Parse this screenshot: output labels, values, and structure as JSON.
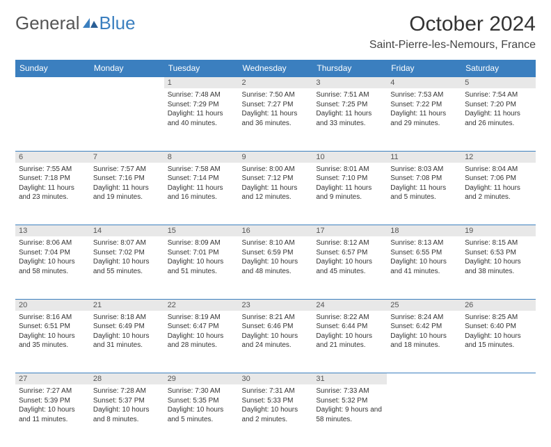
{
  "brand": {
    "part1": "General",
    "part2": "Blue"
  },
  "title": "October 2024",
  "location": "Saint-Pierre-les-Nemours, France",
  "colors": {
    "header_blue": "#3b7fbf",
    "gray_bg": "#e8e8e8",
    "text": "#333333",
    "brand_gray": "#555555"
  },
  "weekdays": [
    "Sunday",
    "Monday",
    "Tuesday",
    "Wednesday",
    "Thursday",
    "Friday",
    "Saturday"
  ],
  "layout": {
    "first_weekday_index": 2,
    "days_in_month": 31
  },
  "days": [
    {
      "n": 1,
      "sunrise": "7:48 AM",
      "sunset": "7:29 PM",
      "daylight": "11 hours and 40 minutes."
    },
    {
      "n": 2,
      "sunrise": "7:50 AM",
      "sunset": "7:27 PM",
      "daylight": "11 hours and 36 minutes."
    },
    {
      "n": 3,
      "sunrise": "7:51 AM",
      "sunset": "7:25 PM",
      "daylight": "11 hours and 33 minutes."
    },
    {
      "n": 4,
      "sunrise": "7:53 AM",
      "sunset": "7:22 PM",
      "daylight": "11 hours and 29 minutes."
    },
    {
      "n": 5,
      "sunrise": "7:54 AM",
      "sunset": "7:20 PM",
      "daylight": "11 hours and 26 minutes."
    },
    {
      "n": 6,
      "sunrise": "7:55 AM",
      "sunset": "7:18 PM",
      "daylight": "11 hours and 23 minutes."
    },
    {
      "n": 7,
      "sunrise": "7:57 AM",
      "sunset": "7:16 PM",
      "daylight": "11 hours and 19 minutes."
    },
    {
      "n": 8,
      "sunrise": "7:58 AM",
      "sunset": "7:14 PM",
      "daylight": "11 hours and 16 minutes."
    },
    {
      "n": 9,
      "sunrise": "8:00 AM",
      "sunset": "7:12 PM",
      "daylight": "11 hours and 12 minutes."
    },
    {
      "n": 10,
      "sunrise": "8:01 AM",
      "sunset": "7:10 PM",
      "daylight": "11 hours and 9 minutes."
    },
    {
      "n": 11,
      "sunrise": "8:03 AM",
      "sunset": "7:08 PM",
      "daylight": "11 hours and 5 minutes."
    },
    {
      "n": 12,
      "sunrise": "8:04 AM",
      "sunset": "7:06 PM",
      "daylight": "11 hours and 2 minutes."
    },
    {
      "n": 13,
      "sunrise": "8:06 AM",
      "sunset": "7:04 PM",
      "daylight": "10 hours and 58 minutes."
    },
    {
      "n": 14,
      "sunrise": "8:07 AM",
      "sunset": "7:02 PM",
      "daylight": "10 hours and 55 minutes."
    },
    {
      "n": 15,
      "sunrise": "8:09 AM",
      "sunset": "7:01 PM",
      "daylight": "10 hours and 51 minutes."
    },
    {
      "n": 16,
      "sunrise": "8:10 AM",
      "sunset": "6:59 PM",
      "daylight": "10 hours and 48 minutes."
    },
    {
      "n": 17,
      "sunrise": "8:12 AM",
      "sunset": "6:57 PM",
      "daylight": "10 hours and 45 minutes."
    },
    {
      "n": 18,
      "sunrise": "8:13 AM",
      "sunset": "6:55 PM",
      "daylight": "10 hours and 41 minutes."
    },
    {
      "n": 19,
      "sunrise": "8:15 AM",
      "sunset": "6:53 PM",
      "daylight": "10 hours and 38 minutes."
    },
    {
      "n": 20,
      "sunrise": "8:16 AM",
      "sunset": "6:51 PM",
      "daylight": "10 hours and 35 minutes."
    },
    {
      "n": 21,
      "sunrise": "8:18 AM",
      "sunset": "6:49 PM",
      "daylight": "10 hours and 31 minutes."
    },
    {
      "n": 22,
      "sunrise": "8:19 AM",
      "sunset": "6:47 PM",
      "daylight": "10 hours and 28 minutes."
    },
    {
      "n": 23,
      "sunrise": "8:21 AM",
      "sunset": "6:46 PM",
      "daylight": "10 hours and 24 minutes."
    },
    {
      "n": 24,
      "sunrise": "8:22 AM",
      "sunset": "6:44 PM",
      "daylight": "10 hours and 21 minutes."
    },
    {
      "n": 25,
      "sunrise": "8:24 AM",
      "sunset": "6:42 PM",
      "daylight": "10 hours and 18 minutes."
    },
    {
      "n": 26,
      "sunrise": "8:25 AM",
      "sunset": "6:40 PM",
      "daylight": "10 hours and 15 minutes."
    },
    {
      "n": 27,
      "sunrise": "7:27 AM",
      "sunset": "5:39 PM",
      "daylight": "10 hours and 11 minutes."
    },
    {
      "n": 28,
      "sunrise": "7:28 AM",
      "sunset": "5:37 PM",
      "daylight": "10 hours and 8 minutes."
    },
    {
      "n": 29,
      "sunrise": "7:30 AM",
      "sunset": "5:35 PM",
      "daylight": "10 hours and 5 minutes."
    },
    {
      "n": 30,
      "sunrise": "7:31 AM",
      "sunset": "5:33 PM",
      "daylight": "10 hours and 2 minutes."
    },
    {
      "n": 31,
      "sunrise": "7:33 AM",
      "sunset": "5:32 PM",
      "daylight": "9 hours and 58 minutes."
    }
  ],
  "labels": {
    "sunrise_prefix": "Sunrise: ",
    "sunset_prefix": "Sunset: ",
    "daylight_prefix": "Daylight: "
  }
}
